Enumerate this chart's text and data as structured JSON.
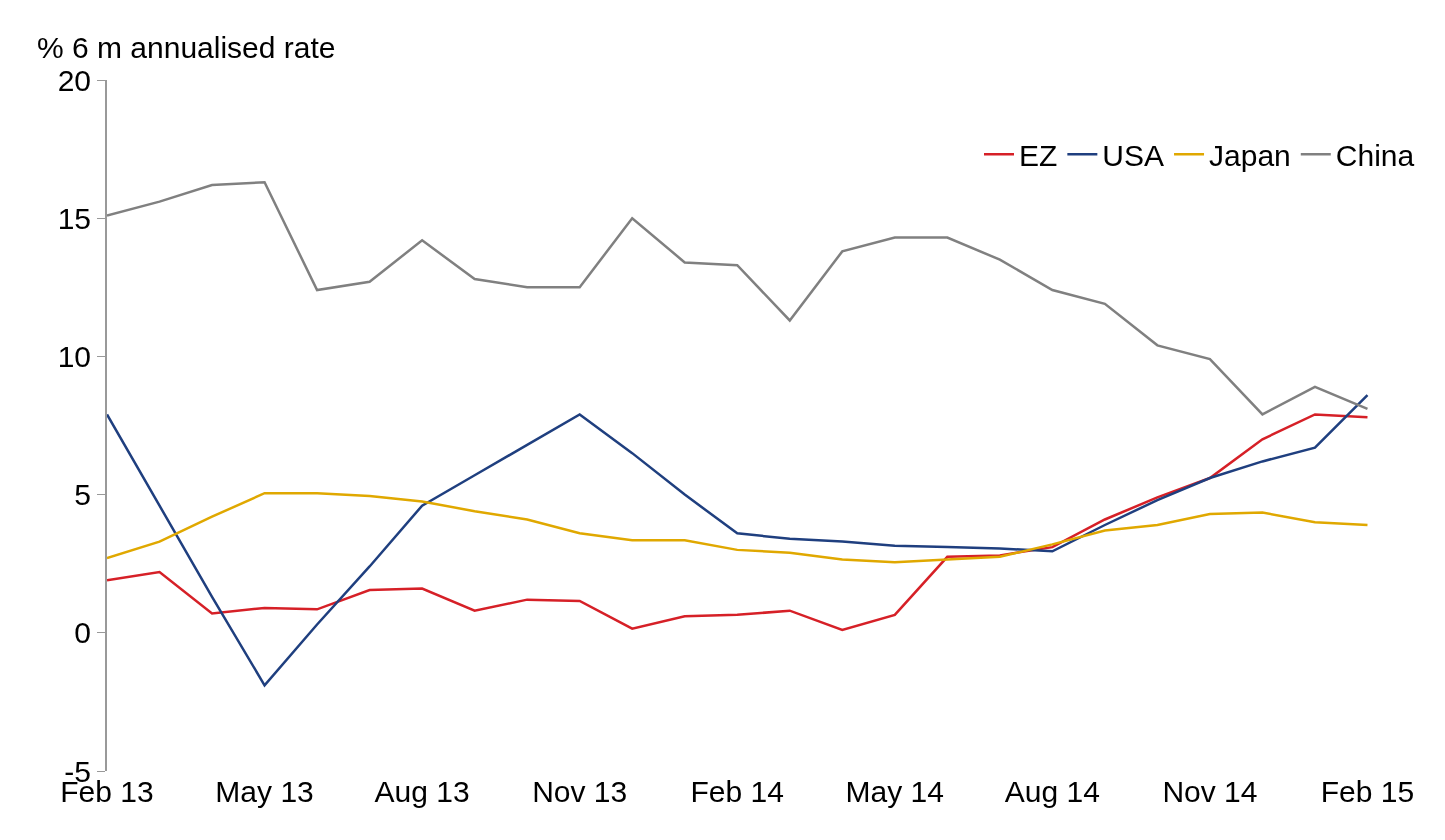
{
  "chart_data": {
    "type": "line",
    "ylabel": "% 6 m annualised rate",
    "categories": [
      "Feb 13",
      null,
      null,
      "May 13",
      null,
      null,
      "Aug 13",
      null,
      null,
      "Nov 13",
      null,
      null,
      "Feb 14",
      null,
      null,
      "May 14",
      null,
      null,
      "Aug 14",
      null,
      null,
      "Nov 14",
      null,
      null,
      "Feb 15"
    ],
    "series": [
      {
        "name": "EZ",
        "color": "#d62027",
        "values": [
          1.9,
          2.2,
          0.7,
          0.9,
          0.85,
          1.55,
          1.6,
          0.8,
          1.2,
          1.15,
          0.15,
          0.6,
          0.65,
          0.8,
          0.1,
          0.65,
          2.75,
          2.8,
          3.1,
          4.1,
          4.9,
          5.6,
          7.0,
          7.9,
          7.8
        ]
      },
      {
        "name": "USA",
        "color": "#1f3f7f",
        "values": [
          7.9,
          4.6,
          1.3,
          -1.9,
          0.3,
          2.4,
          4.6,
          5.7,
          6.8,
          7.9,
          6.5,
          5.0,
          3.6,
          3.4,
          3.3,
          3.15,
          3.1,
          3.05,
          2.95,
          3.9,
          4.8,
          5.6,
          6.2,
          6.7,
          8.6
        ]
      },
      {
        "name": "Japan",
        "color": "#e0a800",
        "values": [
          2.7,
          3.3,
          4.2,
          5.05,
          5.05,
          4.95,
          4.75,
          4.4,
          4.1,
          3.6,
          3.35,
          3.35,
          3.0,
          2.9,
          2.65,
          2.55,
          2.65,
          2.75,
          3.2,
          3.7,
          3.9,
          4.3,
          4.35,
          4.0,
          3.9
        ]
      },
      {
        "name": "China",
        "color": "#808080",
        "values": [
          15.1,
          15.6,
          16.2,
          16.3,
          12.4,
          12.7,
          14.2,
          12.8,
          12.5,
          12.5,
          15.0,
          13.4,
          13.3,
          11.3,
          13.8,
          14.3,
          14.3,
          13.5,
          12.4,
          11.9,
          10.4,
          9.9,
          7.9,
          8.9,
          8.1
        ]
      }
    ],
    "ylim": [
      -5,
      20
    ],
    "yticks": [
      -5,
      0,
      5,
      10,
      15,
      20
    ],
    "grid": false,
    "legend": "top right",
    "marker": "none",
    "line_style": "solid"
  }
}
